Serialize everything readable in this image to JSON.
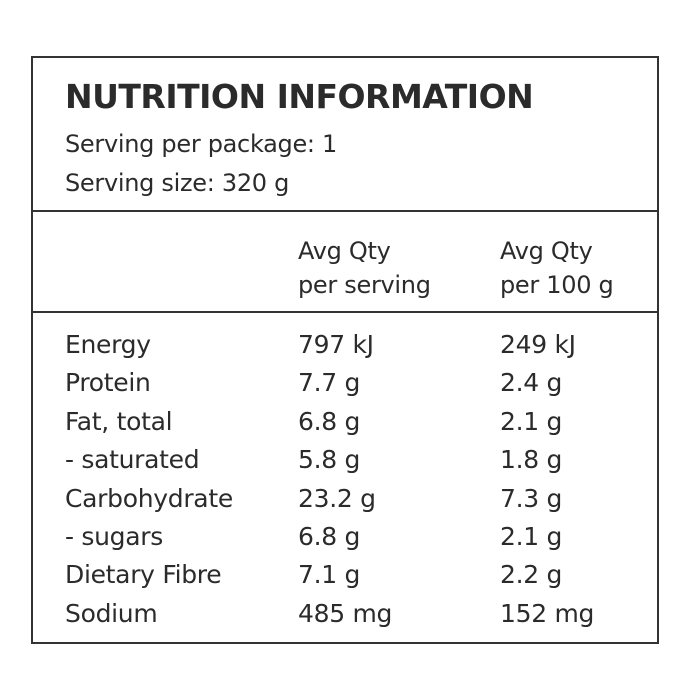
{
  "panel": {
    "title": "NUTRITION INFORMATION",
    "servings_per_package": "Serving per package: 1",
    "serving_size": "Serving size: 320 g"
  },
  "columns": {
    "per_serving": {
      "line1": "Avg Qty",
      "line2": "per serving"
    },
    "per_100g": {
      "line1": "Avg Qty",
      "line2": "per 100 g"
    }
  },
  "rows": [
    {
      "name": "Energy",
      "per_serving": "797 kJ",
      "per_100g": "249 kJ"
    },
    {
      "name": "Protein",
      "per_serving": "7.7 g",
      "per_100g": "2.4 g"
    },
    {
      "name": "Fat, total",
      "per_serving": "6.8 g",
      "per_100g": "2.1 g"
    },
    {
      "name": "- saturated",
      "per_serving": "5.8 g",
      "per_100g": "1.8 g"
    },
    {
      "name": "Carbohydrate",
      "per_serving": "23.2 g",
      "per_100g": "7.3 g"
    },
    {
      "name": "- sugars",
      "per_serving": "6.8 g",
      "per_100g": "2.1 g"
    },
    {
      "name": "Dietary Fibre",
      "per_serving": "7.1 g",
      "per_100g": "2.2 g"
    },
    {
      "name": "Sodium",
      "per_serving": "485 mg",
      "per_100g": "152 mg"
    }
  ]
}
